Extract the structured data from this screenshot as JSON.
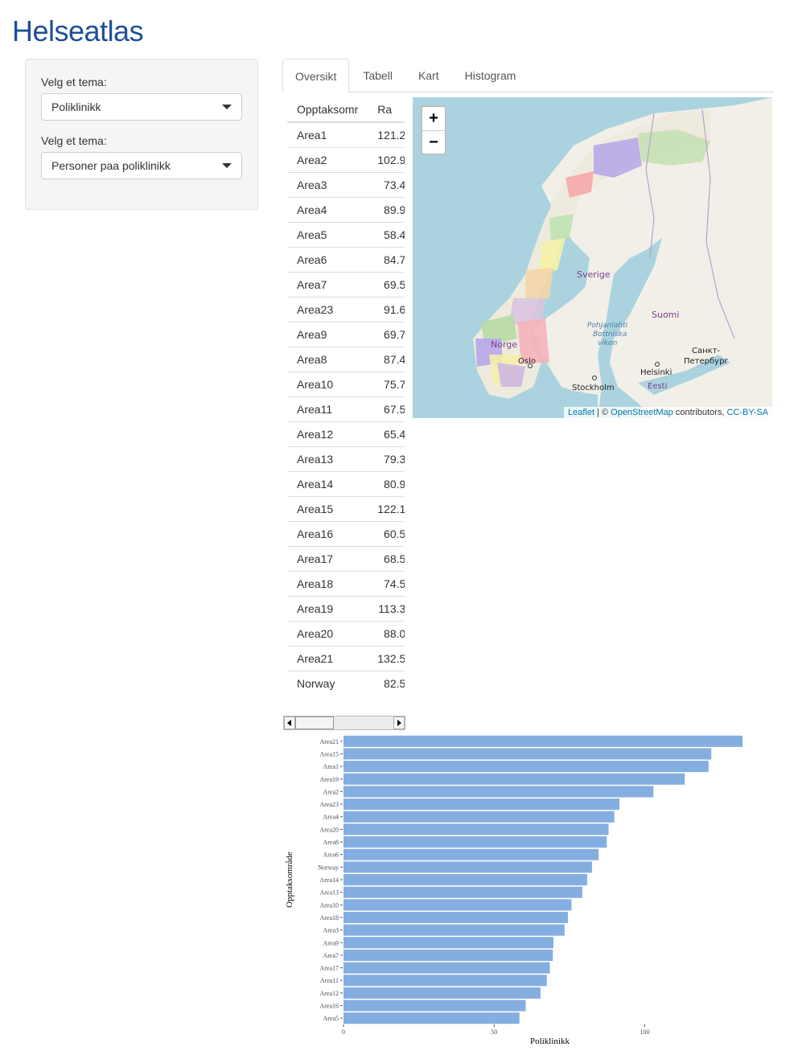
{
  "app": {
    "title": "Helseatlas"
  },
  "sidebar": {
    "controls": [
      {
        "label": "Velg et tema:",
        "value": "Poliklinikk"
      },
      {
        "label": "Velg et tema:",
        "value": "Personer paa poliklinikk"
      }
    ]
  },
  "tabs": [
    {
      "label": "Oversikt",
      "active": true
    },
    {
      "label": "Tabell",
      "active": false
    },
    {
      "label": "Kart",
      "active": false
    },
    {
      "label": "Histogram",
      "active": false
    }
  ],
  "table": {
    "headers": [
      "Opptaksomr",
      "Ra"
    ],
    "rows": [
      [
        "Area1",
        "121.2"
      ],
      [
        "Area2",
        "102.9"
      ],
      [
        "Area3",
        "73.4"
      ],
      [
        "Area4",
        "89.9"
      ],
      [
        "Area5",
        "58.4"
      ],
      [
        "Area6",
        "84.7"
      ],
      [
        "Area7",
        "69.5"
      ],
      [
        "Area23",
        "91.6"
      ],
      [
        "Area9",
        "69.7"
      ],
      [
        "Area8",
        "87.4"
      ],
      [
        "Area10",
        "75.7"
      ],
      [
        "Area11",
        "67.5"
      ],
      [
        "Area12",
        "65.4"
      ],
      [
        "Area13",
        "79.3"
      ],
      [
        "Area14",
        "80.9"
      ],
      [
        "Area15",
        "122.1"
      ],
      [
        "Area16",
        "60.5"
      ],
      [
        "Area17",
        "68.5"
      ],
      [
        "Area18",
        "74.5"
      ],
      [
        "Area19",
        "113.3"
      ],
      [
        "Area20",
        "88.0"
      ],
      [
        "Area21",
        "132.5"
      ],
      [
        "Norway",
        "82.5"
      ]
    ]
  },
  "map": {
    "zoom_in": "+",
    "zoom_out": "−",
    "labels": [
      "Sverige",
      "Suomi",
      "Norge",
      "Oslo",
      "Stockholm",
      "Helsinki",
      "Eesti",
      "Санкт-",
      "Петербург",
      "Pohjanlahti",
      "Bottniska",
      "viken"
    ],
    "attribution": {
      "leaflet": "Leaflet",
      "sep": " | © ",
      "osm": "OpenStreetMap",
      "contributors": " contributors, ",
      "license": "CC-BY-SA"
    },
    "colors": {
      "sea": "#aad3df",
      "land": "#f2efe9"
    }
  },
  "chart_data": {
    "type": "bar",
    "orientation": "horizontal",
    "xlabel": "Poliklinikk",
    "ylabel": "Opptaksområde",
    "xlim": [
      0,
      137
    ],
    "xticks": [
      0,
      50,
      100
    ],
    "color": "#85aee0",
    "categories": [
      "Area21",
      "Area15",
      "Area1",
      "Area19",
      "Area2",
      "Area23",
      "Area4",
      "Area20",
      "Area8",
      "Area6",
      "Norway",
      "Area14",
      "Area13",
      "Area10",
      "Area18",
      "Area3",
      "Area9",
      "Area7",
      "Area17",
      "Area11",
      "Area12",
      "Area16",
      "Area5"
    ],
    "values": [
      132.5,
      122.1,
      121.2,
      113.3,
      102.9,
      91.6,
      89.9,
      88.0,
      87.4,
      84.7,
      82.5,
      80.9,
      79.3,
      75.7,
      74.5,
      73.4,
      69.7,
      69.5,
      68.5,
      67.5,
      65.4,
      60.5,
      58.4
    ]
  }
}
